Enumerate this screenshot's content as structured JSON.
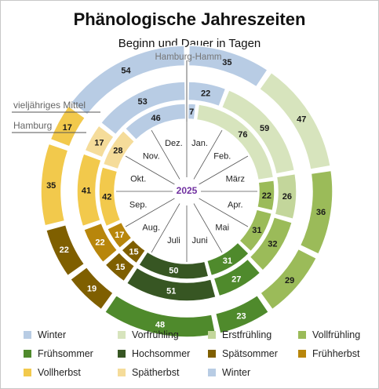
{
  "title": "Phänologische Jahreszeiten",
  "subtitle": "Beginn und Dauer in Tagen",
  "ring_labels": {
    "outer": "vieljähriges Mittel",
    "inner": "Hamburg",
    "station": "Hamburg-Hamm"
  },
  "center_year": "2025",
  "months": [
    "Jan.",
    "Feb.",
    "März",
    "Apr.",
    "Mai",
    "Juni",
    "Juli",
    "Aug.",
    "Sep.",
    "Okt.",
    "Nov.",
    "Dez."
  ],
  "colors": {
    "Winter": "#b8cce4",
    "Vorfrühling": "#d7e4bd",
    "Erstfrühling": "#c3d69b",
    "Vollfrühling": "#9bbb59",
    "Frühsommer": "#4f8a2c",
    "Hochsommer": "#375623",
    "Spätsommer": "#7f5f00",
    "Frühherbst": "#b8860b",
    "Vollherbst": "#f2c94c",
    "Spätherbst": "#f5dc9a"
  },
  "legend": [
    {
      "label": "Winter",
      "color": "#b8cce4"
    },
    {
      "label": "Vorfrühling",
      "color": "#d7e4bd"
    },
    {
      "label": "Erstfrühling",
      "color": "#c3d69b"
    },
    {
      "label": "Vollfrühling",
      "color": "#9bbb59"
    },
    {
      "label": "Frühsommer",
      "color": "#4f8a2c"
    },
    {
      "label": "Hochsommer",
      "color": "#375623"
    },
    {
      "label": "Spätsommer",
      "color": "#7f5f00"
    },
    {
      "label": "Frühherbst",
      "color": "#b8860b"
    },
    {
      "label": "Vollherbst",
      "color": "#f2c94c"
    },
    {
      "label": "Spätherbst",
      "color": "#f5dc9a"
    },
    {
      "label": "Winter",
      "color": "#b8cce4"
    }
  ],
  "chart_data": {
    "type": "donut",
    "title": "Phänologische Jahreszeiten",
    "subtitle": "Beginn und Dauer in Tagen",
    "units": "Tage",
    "series": [
      {
        "name": "vieljähriges Mittel",
        "segments": [
          {
            "season": "Winter",
            "days": 35
          },
          {
            "season": "Vorfrühling",
            "days": 47
          },
          {
            "season": "Vollfrühling",
            "days": 36
          },
          {
            "season": "Vollfrühling",
            "days": 29
          },
          {
            "season": "Frühsommer",
            "days": 23
          },
          {
            "season": "Frühsommer",
            "days": 48
          },
          {
            "season": "Spätsommer",
            "days": 19
          },
          {
            "season": "Spätsommer",
            "days": 22
          },
          {
            "season": "Vollherbst",
            "days": 35
          },
          {
            "season": "Vollherbst",
            "days": 17
          },
          {
            "season": "Winter",
            "days": 54
          }
        ]
      },
      {
        "name": "Hamburg 2025",
        "segments": [
          {
            "season": "Winter",
            "days": 7
          },
          {
            "season": "Vorfrühling",
            "days": 76
          },
          {
            "season": "Vollfrühling",
            "days": 22
          },
          {
            "season": "Vollfrühling",
            "days": 31
          },
          {
            "season": "Frühsommer",
            "days": 31
          },
          {
            "season": "Hochsommer",
            "days": 50
          },
          {
            "season": "Spätsommer",
            "days": 15
          },
          {
            "season": "Frühherbst",
            "days": 17
          },
          {
            "season": "Vollherbst",
            "days": 42
          },
          {
            "season": "Spätherbst",
            "days": 28
          },
          {
            "season": "Winter",
            "days": 46
          }
        ]
      },
      {
        "name": "Hamburg (Mittel)",
        "segments": [
          {
            "season": "Winter",
            "days": 22
          },
          {
            "season": "Vorfrühling",
            "days": 59
          },
          {
            "season": "Erstfrühling",
            "days": 26
          },
          {
            "season": "Vollfrühling",
            "days": 32
          },
          {
            "season": "Frühsommer",
            "days": 27
          },
          {
            "season": "Hochsommer",
            "days": 51
          },
          {
            "season": "Spätsommer",
            "days": 15
          },
          {
            "season": "Frühherbst",
            "days": 22
          },
          {
            "season": "Vollherbst",
            "days": 41
          },
          {
            "season": "Spätherbst",
            "days": 17
          },
          {
            "season": "Winter",
            "days": 53
          }
        ]
      }
    ]
  }
}
